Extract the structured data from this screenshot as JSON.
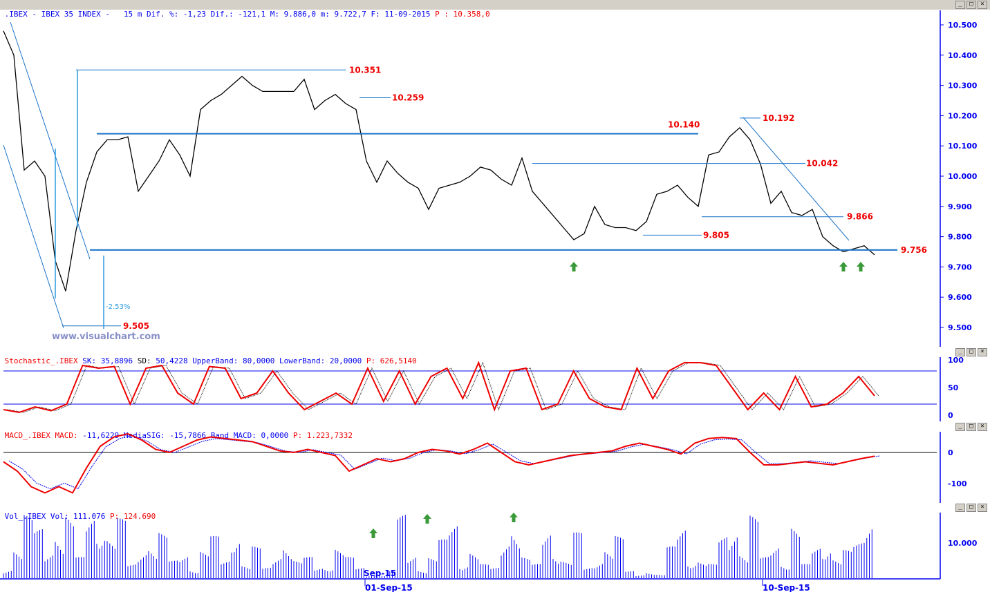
{
  "header": {
    "symbol": ".IBEX - IBEX 35 INDEX -",
    "info": "15 m Dif. %: -1,23 Dif.: -121,1 M: 9.886,0 m: 9.722,7 F: 11-09-2015",
    "last": "P : 10.358,0"
  },
  "stoch_header": {
    "name": "Stochastic_.IBEX",
    "sk_l": "SK:",
    "sk": "35,8896",
    "sd_l": "SD:",
    "sd": "50,4228",
    "ub_l": "UpperBand:",
    "ub": "80,0000",
    "lb_l": "LowerBand:",
    "lb": "20,0000",
    "p": "P: 626,5140"
  },
  "macd_header": {
    "name": "MACD_.IBEX",
    "macd_l": "MACD:",
    "macd": "-11,6229",
    "sig_l": "MediaSIG:",
    "sig": "-15,7866",
    "band_l": "Band_MACD:",
    "band": "0,0000",
    "p": "P: 1.223,7332"
  },
  "vol_header": {
    "name": "Vol_.IBEX",
    "vol_l": "Vol:",
    "vol": "111.076",
    "p": "P: 124.690"
  },
  "watermark": "www.visualchart.com",
  "window_buttons": [
    "minimize",
    "maximize",
    "close"
  ],
  "colors": {
    "axis": "#0000ee",
    "annot": "#ee0000",
    "line": "#1a73c8",
    "stoch": "#ee0000",
    "vol": "#0000ee",
    "arrow": "#3a9a3a"
  },
  "chart_data": [
    {
      "type": "line",
      "panel": "price",
      "ylim": [
        9.45,
        10.55
      ],
      "yticks": [
        "10.500",
        "10.400",
        "10.300",
        "10.200",
        "10.100",
        "10.000",
        "9.900",
        "9.800",
        "9.700",
        "9.600",
        "9.500"
      ],
      "xticks": [
        "01-Sep-15",
        "10-Sep-15"
      ],
      "xtick_inner": "Sep-15",
      "close": [
        10.48,
        10.4,
        10.02,
        10.05,
        10.0,
        9.72,
        9.62,
        9.82,
        9.98,
        10.08,
        10.12,
        10.12,
        10.13,
        9.95,
        10.0,
        10.05,
        10.12,
        10.07,
        10.0,
        10.22,
        10.25,
        10.27,
        10.3,
        10.33,
        10.3,
        10.28,
        10.28,
        10.28,
        10.28,
        10.32,
        10.22,
        10.25,
        10.27,
        10.24,
        10.22,
        10.05,
        9.98,
        10.05,
        10.01,
        9.98,
        9.96,
        9.89,
        9.96,
        9.97,
        9.98,
        10.0,
        10.03,
        10.02,
        9.99,
        9.97,
        10.06,
        9.95,
        9.91,
        9.87,
        9.83,
        9.79,
        9.81,
        9.9,
        9.84,
        9.83,
        9.83,
        9.82,
        9.85,
        9.94,
        9.95,
        9.97,
        9.93,
        9.9,
        10.07,
        10.08,
        10.13,
        10.16,
        10.12,
        10.04,
        9.91,
        9.95,
        9.88,
        9.87,
        9.89,
        9.8,
        9.77,
        9.75,
        9.76,
        9.77,
        9.74
      ],
      "levels": [
        {
          "label": "10.351",
          "value": 10.351
        },
        {
          "label": "10.259",
          "value": 10.259
        },
        {
          "label": "10.140",
          "value": 10.14
        },
        {
          "label": "10.192",
          "value": 10.192
        },
        {
          "label": "10.042",
          "value": 10.042
        },
        {
          "label": "9.866",
          "value": 9.866
        },
        {
          "label": "9.805",
          "value": 9.805
        },
        {
          "label": "9.756",
          "value": 9.756
        },
        {
          "label": "9.505",
          "value": 9.505
        }
      ],
      "annotation": "-2.53%"
    },
    {
      "type": "line",
      "panel": "stochastic",
      "ylim": [
        -10,
        105
      ],
      "yticks": [
        "100",
        "50",
        "0"
      ],
      "bands": [
        80,
        20
      ],
      "sk": [
        10,
        5,
        15,
        8,
        20,
        90,
        85,
        88,
        20,
        85,
        90,
        40,
        20,
        88,
        85,
        30,
        40,
        80,
        40,
        10,
        25,
        40,
        20,
        85,
        25,
        80,
        20,
        70,
        85,
        30,
        95,
        10,
        80,
        85,
        10,
        20,
        80,
        30,
        15,
        10,
        85,
        30,
        80,
        95,
        95,
        90,
        50,
        10,
        40,
        10,
        70,
        15,
        20,
        40,
        70,
        35
      ]
    },
    {
      "type": "line",
      "panel": "macd",
      "ylim": [
        -160,
        70
      ],
      "yticks": [
        "0",
        "-100"
      ],
      "macd": [
        -30,
        -60,
        -110,
        -130,
        -110,
        -130,
        -50,
        20,
        50,
        60,
        40,
        10,
        0,
        20,
        40,
        50,
        45,
        40,
        35,
        20,
        5,
        0,
        10,
        0,
        -10,
        -60,
        -40,
        -20,
        -30,
        -20,
        0,
        10,
        5,
        -5,
        10,
        30,
        0,
        -30,
        -40,
        -30,
        -20,
        -10,
        -5,
        0,
        5,
        20,
        30,
        20,
        10,
        -5,
        30,
        45,
        48,
        45,
        0,
        -40,
        -40,
        -35,
        -30,
        -35,
        -40,
        -30,
        -20,
        -12
      ]
    },
    {
      "type": "bar",
      "panel": "volume",
      "ylim": [
        0,
        18600
      ],
      "yticks": [
        "10.000"
      ],
      "volume": [
        3000,
        9000,
        18000,
        14000,
        8000,
        15000,
        18000,
        6000,
        18000,
        18000,
        12000,
        17000,
        4000,
        9000,
        10000,
        13000,
        5000,
        7000,
        3000,
        8000,
        12000,
        5000,
        15000,
        4000,
        9000,
        3000,
        7000,
        11000,
        5000,
        6000,
        3000,
        4000,
        9000,
        6000,
        3000,
        1000,
        1000,
        2000,
        18000,
        7000,
        3000,
        6000,
        11000,
        16000,
        5000,
        8000,
        4000,
        3000,
        12000,
        16000,
        6000,
        4000,
        14000,
        9000,
        5000,
        13000,
        3000,
        6000,
        9000,
        12000,
        2000,
        1000,
        2000,
        1000,
        9000,
        15000,
        6000,
        5000,
        4000,
        12000,
        16000,
        8000,
        18000,
        6000,
        10000,
        5000,
        15000,
        4000,
        9000,
        11000,
        6000,
        8000,
        10000,
        18000
      ]
    }
  ]
}
